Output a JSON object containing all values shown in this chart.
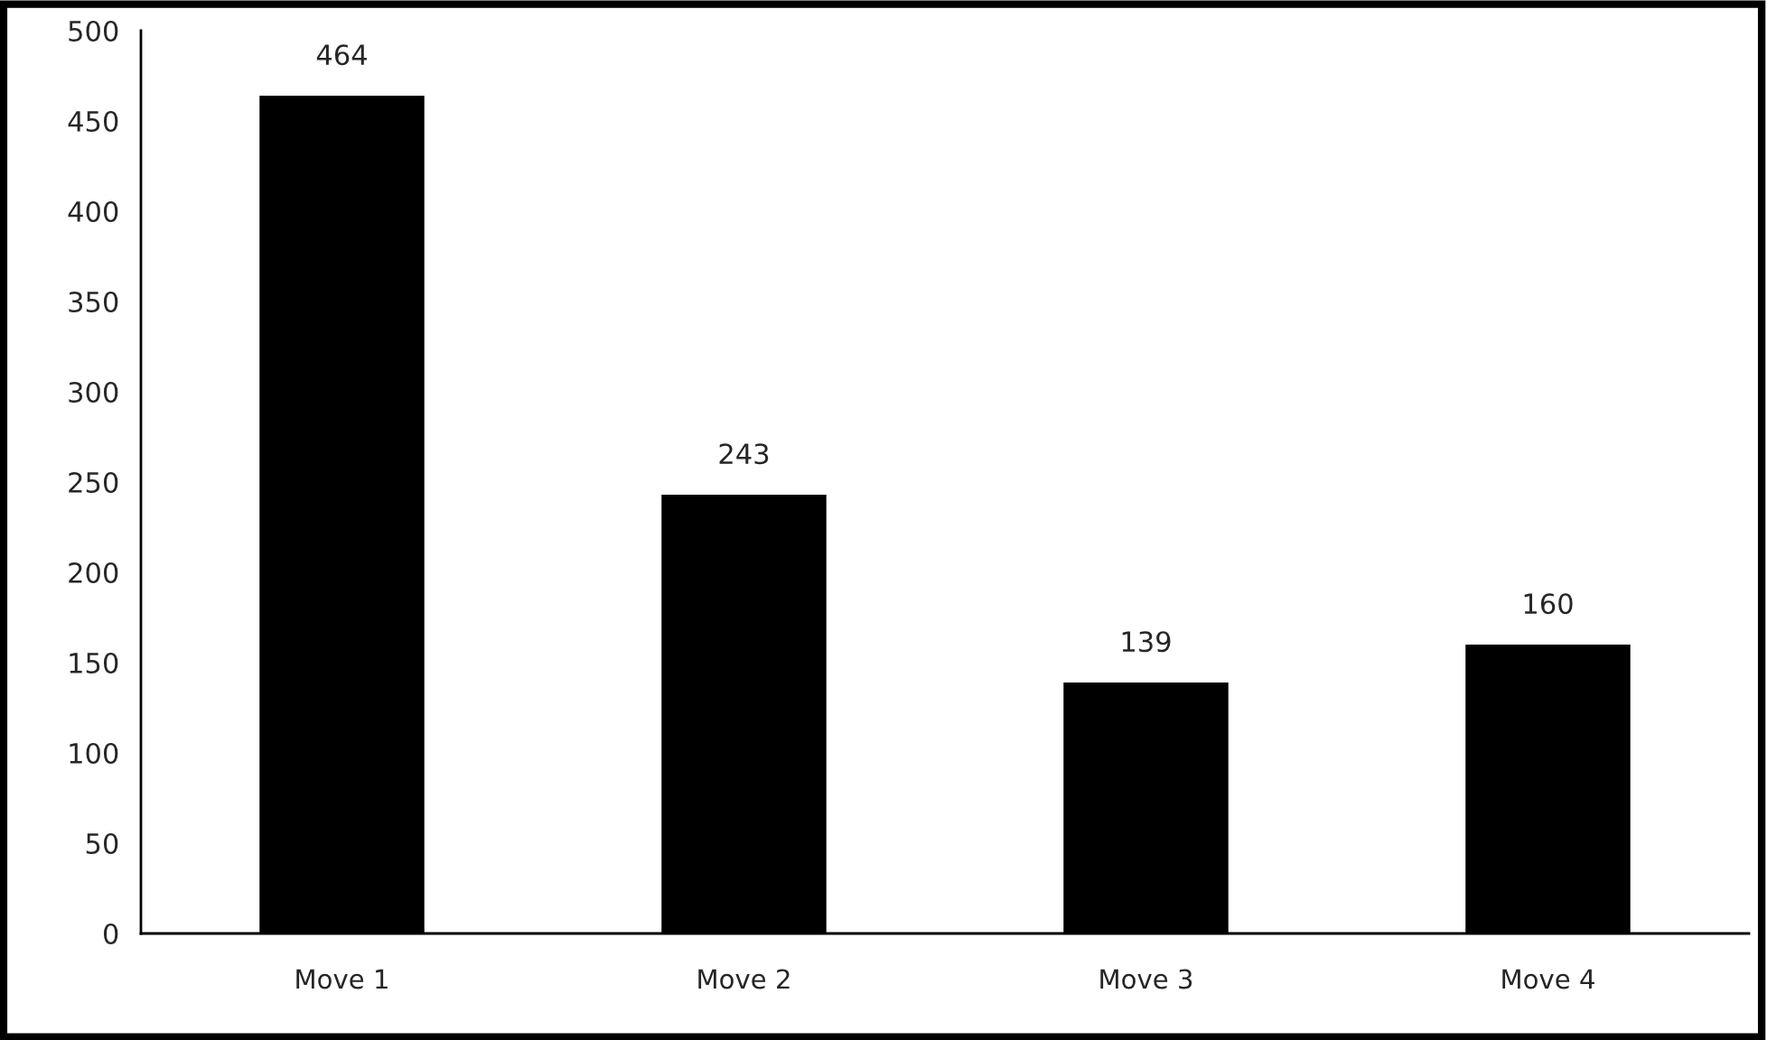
{
  "chart_data": {
    "type": "bar",
    "categories": [
      "Move 1",
      "Move 2",
      "Move 3",
      "Move 4"
    ],
    "values": [
      464,
      243,
      139,
      160
    ],
    "color": "#000000",
    "ylim": [
      0,
      500
    ],
    "yticks": [
      0,
      50,
      100,
      150,
      200,
      250,
      300,
      350,
      400,
      450,
      500
    ],
    "data_labels": true,
    "grid": false,
    "legend": false
  }
}
